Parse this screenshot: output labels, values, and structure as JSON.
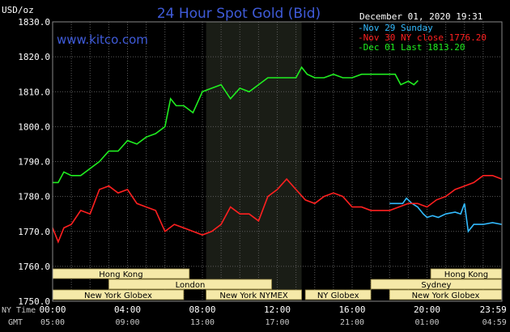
{
  "chart_data": {
    "type": "line",
    "title": "24 Hour Spot Gold (Bid)",
    "website": "www.kitco.com",
    "timestamp": "December 01, 2020 19:31",
    "ylabel": "USD/oz",
    "ylim": [
      1750,
      1830
    ],
    "yticks": [
      "1830.0",
      "1820.0",
      "1810.0",
      "1800.0",
      "1790.0",
      "1780.0",
      "1770.0",
      "1760.0",
      "1750.0"
    ],
    "x_range_hours": [
      0,
      24
    ],
    "xticks_ny": [
      "00:00",
      "04:00",
      "08:00",
      "12:00",
      "16:00",
      "20:00",
      "23:59"
    ],
    "xticks_gmt": [
      "05:00",
      "09:00",
      "13:00",
      "17:00",
      "21:00",
      "01:00",
      "04:59"
    ],
    "row_label_ny": "NY Time",
    "row_label_gmt": "GMT",
    "grid": true,
    "legend_position": "top-right",
    "series": [
      {
        "name": "Nov 29 Sunday",
        "color": "#33bbff",
        "x": [
          18.0,
          18.5,
          18.7,
          18.9,
          19.2,
          19.5,
          19.8,
          20.0,
          20.3,
          20.6,
          21.0,
          21.5,
          21.8,
          22.0,
          22.2,
          22.5,
          23.0,
          23.5,
          23.99
        ],
        "y": [
          1778,
          1778,
          1778,
          1779.5,
          1778,
          1777,
          1775,
          1774,
          1774.5,
          1774,
          1775,
          1775.5,
          1775,
          1778,
          1770,
          1772,
          1772,
          1772.5,
          1772
        ]
      },
      {
        "name": "Nov 30 NY close 1776.20",
        "color": "#ff2020",
        "x": [
          0,
          0.3,
          0.6,
          1,
          1.5,
          2,
          2.5,
          3,
          3.5,
          4,
          4.5,
          5,
          5.5,
          6,
          6.5,
          7,
          7.5,
          8,
          8.5,
          9,
          9.5,
          10,
          10.5,
          11,
          11.5,
          12,
          12.5,
          13,
          13.5,
          14,
          14.5,
          15,
          15.5,
          16,
          16.5,
          17,
          17.5,
          18,
          18.5,
          19,
          19.5,
          20,
          20.5,
          21,
          21.5,
          22,
          22.5,
          23,
          23.5,
          23.99
        ],
        "y": [
          1771,
          1767,
          1771,
          1772,
          1776,
          1775,
          1782,
          1783,
          1781,
          1782,
          1778,
          1777,
          1776,
          1770,
          1772,
          1771,
          1770,
          1769,
          1770,
          1772,
          1777,
          1775,
          1775,
          1773,
          1780,
          1782,
          1785,
          1782,
          1779,
          1778,
          1780,
          1781,
          1780,
          1777,
          1777,
          1776,
          1776,
          1776,
          1777,
          1778,
          1778,
          1777,
          1779,
          1780,
          1782,
          1783,
          1784,
          1786,
          1786,
          1785
        ]
      },
      {
        "name": "Dec 01 Last 1813.20",
        "color": "#20ee20",
        "x": [
          0,
          0.3,
          0.6,
          1,
          1.5,
          2,
          2.5,
          3,
          3.5,
          4,
          4.5,
          5,
          5.5,
          6,
          6.3,
          6.6,
          7,
          7.5,
          8,
          8.5,
          9,
          9.5,
          10,
          10.5,
          11,
          11.5,
          12,
          12.5,
          13,
          13.3,
          13.6,
          14,
          14.5,
          15,
          15.5,
          16,
          16.5,
          17,
          17.5,
          18,
          18.3,
          18.6,
          19,
          19.3,
          19.52
        ],
        "y": [
          1784,
          1784,
          1787,
          1786,
          1786,
          1788,
          1790,
          1793,
          1793,
          1796,
          1795,
          1797,
          1798,
          1800,
          1808,
          1806,
          1806,
          1804,
          1810,
          1811,
          1812,
          1808,
          1811,
          1810,
          1812,
          1814,
          1814,
          1814,
          1814,
          1817,
          1815,
          1814,
          1814,
          1815,
          1814,
          1814,
          1815,
          1815,
          1815,
          1815,
          1815,
          1812,
          1813,
          1812,
          1813.2
        ]
      }
    ],
    "market_bars": [
      {
        "label": "Hong Kong",
        "row": 0,
        "start": 0,
        "end": 7.3
      },
      {
        "label": "Hong Kong",
        "row": 0,
        "start": 20.2,
        "end": 23.99
      },
      {
        "label": "London",
        "row": 1,
        "start": 3.0,
        "end": 11.7
      },
      {
        "label": "Sydney",
        "row": 1,
        "start": 17.0,
        "end": 23.99
      },
      {
        "label": "New York Globex",
        "row": 2,
        "start": 0,
        "end": 7.0
      },
      {
        "label": "New York NYMEX",
        "row": 2,
        "start": 8.2,
        "end": 13.3
      },
      {
        "label": "NY Globex",
        "row": 2,
        "start": 13.5,
        "end": 17.0
      },
      {
        "label": "New York Globex",
        "row": 2,
        "start": 18.0,
        "end": 23.99
      }
    ],
    "highlight_hours": [
      8.2,
      13.3
    ]
  }
}
